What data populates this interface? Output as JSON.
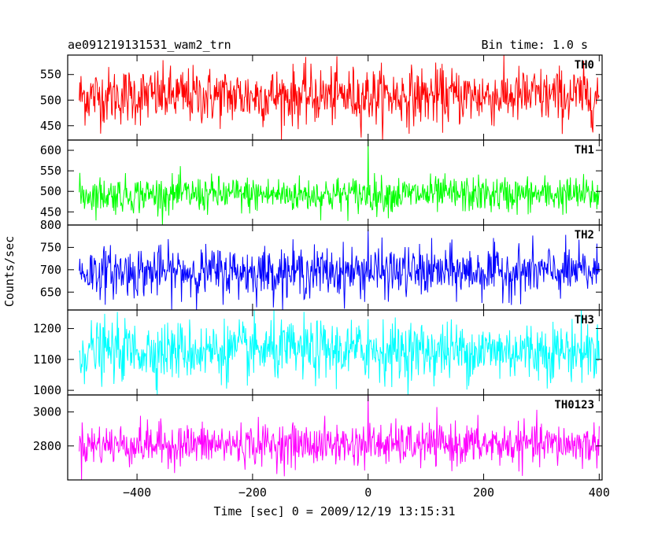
{
  "chart_data": {
    "type": "line",
    "title_left": "ae091219131531_wam2_trn",
    "title_right": "Bin time: 1.0 s",
    "xlabel": "Time [sec] 0 = 2009/12/19 13:15:31",
    "ylabel": "Counts/sec",
    "xlim": [
      -520,
      405
    ],
    "x_ticks": [
      -400,
      -200,
      0,
      200,
      400
    ],
    "x_tick_labels": [
      "−400",
      "−200",
      "0",
      "200",
      "400"
    ],
    "x_range": [
      -500,
      400
    ],
    "bin_time_s": 1.0,
    "series": [
      {
        "name": "TH0",
        "color": "#ff0000",
        "ylim": [
          422,
          588
        ],
        "yticks": [
          450,
          500,
          550
        ],
        "mean": 508,
        "sd": 28,
        "spike": {
          "x": 0,
          "y": 540
        }
      },
      {
        "name": "TH1",
        "color": "#00ff00",
        "ylim": [
          418,
          625
        ],
        "yticks": [
          450,
          500,
          550,
          600
        ],
        "mean": 492,
        "sd": 22,
        "spike": {
          "x": 0,
          "y": 625
        }
      },
      {
        "name": "TH2",
        "color": "#0000ff",
        "ylim": [
          610,
          800
        ],
        "yticks": [
          650,
          700,
          750,
          800
        ],
        "mean": 695,
        "sd": 28,
        "spike": {
          "x": 0,
          "y": 790
        }
      },
      {
        "name": "TH3",
        "color": "#00ffff",
        "ylim": [
          985,
          1260
        ],
        "yticks": [
          1000,
          1100,
          1200
        ],
        "mean": 1128,
        "sd": 48,
        "spike": {
          "x": 0,
          "y": 1230
        }
      },
      {
        "name": "TH0123",
        "color": "#ff00ff",
        "ylim": [
          2600,
          3100
        ],
        "yticks": [
          2800,
          3000
        ],
        "mean": 2808,
        "sd": 62,
        "spike": {
          "x": 0,
          "y": 3100
        }
      }
    ]
  }
}
